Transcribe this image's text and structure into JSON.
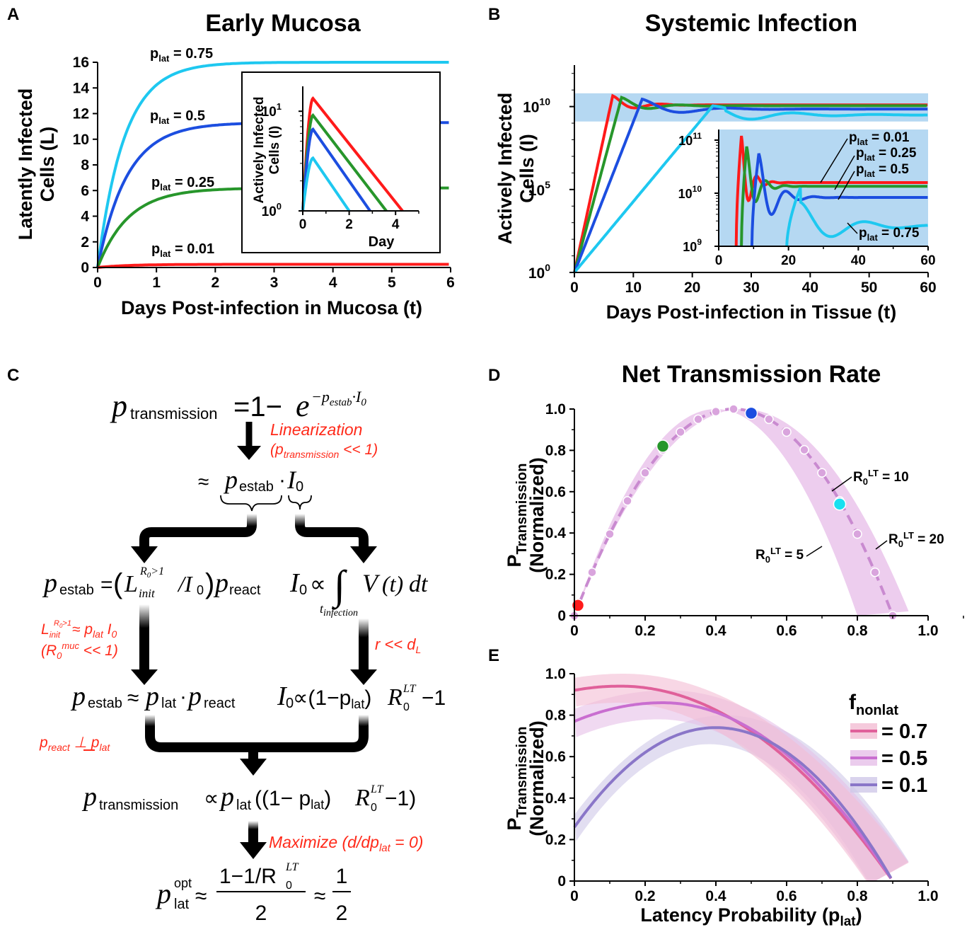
{
  "panels": {
    "A": {
      "letter": "A",
      "chart_data": {
        "type": "line",
        "title": "Early Mucosa",
        "xlabel": "Days Post-infection in Mucosa (t)",
        "ylabel_line1": "Latently Infected",
        "ylabel_line2": "Cells (L)",
        "xlim": [
          0,
          6
        ],
        "ylim": [
          0,
          16
        ],
        "xticks": [
          "0",
          "1",
          "2",
          "3",
          "4",
          "5",
          "6"
        ],
        "yticks": [
          "0",
          "2",
          "4",
          "6",
          "8",
          "10",
          "12",
          "14",
          "16"
        ],
        "series": [
          {
            "label_sub": "lat",
            "label_value": "0.75",
            "color": "#1ec8f0",
            "plateau": 16.0,
            "rate": 2.2
          },
          {
            "label_sub": "lat",
            "label_value": "0.5",
            "color": "#1c4ee0",
            "plateau": 11.3,
            "rate": 2.0
          },
          {
            "label_sub": "lat",
            "label_value": "0.25",
            "color": "#27962b",
            "plateau": 6.2,
            "rate": 1.9
          },
          {
            "label_sub": "lat",
            "label_value": " 0.01",
            "color": "#ff1a1a",
            "plateau": 0.25,
            "rate": 1.9
          }
        ],
        "inset": {
          "ylabel_line1": "Actively Infected",
          "ylabel_line2": "Cells (I)",
          "xlabel": "Day",
          "xlim": [
            0,
            5
          ],
          "ylim_log10": [
            0,
            1.25
          ],
          "xticks": [
            "0",
            "2",
            "4"
          ],
          "yticks": [
            "10",
            "10"
          ],
          "ytick_exps": [
            "0",
            "1"
          ],
          "series": [
            {
              "color": "#ff1a1a",
              "peak_x": 0.45,
              "peak_log": 1.13,
              "end_x": 4.3
            },
            {
              "color": "#27962b",
              "peak_x": 0.45,
              "peak_log": 0.96,
              "end_x": 3.6
            },
            {
              "color": "#1c4ee0",
              "peak_x": 0.45,
              "peak_log": 0.82,
              "end_x": 2.9
            },
            {
              "color": "#1ec8f0",
              "peak_x": 0.45,
              "peak_log": 0.53,
              "end_x": 2.0
            }
          ]
        }
      }
    },
    "B": {
      "letter": "B",
      "chart_data": {
        "type": "line",
        "title": "Systemic Infection",
        "xlabel": "Days Post-infection in Tissue (t)",
        "ylabel_line1": "Actively Infected",
        "ylabel_line2": "Cells (I)",
        "xlim": [
          0,
          60
        ],
        "ylim_log10": [
          0,
          12.5
        ],
        "xticks": [
          "0",
          "10",
          "20",
          "30",
          "40",
          "50",
          "60"
        ],
        "yticks": [
          "10",
          "10",
          "10"
        ],
        "ytick_exps": [
          "0",
          "5",
          "10"
        ],
        "band_log10": [
          9.1,
          10.8
        ],
        "series": [
          {
            "color": "#ff1a1a",
            "peak_day": 6.5,
            "peak_log": 10.65,
            "steady_log": 10.1
          },
          {
            "color": "#27962b",
            "peak_day": 8.0,
            "peak_log": 10.55,
            "steady_log": 10.05
          },
          {
            "color": "#1c4ee0",
            "peak_day": 11.5,
            "peak_log": 10.45,
            "steady_log": 9.85
          },
          {
            "color": "#1ec8f0",
            "peak_day": 23.5,
            "peak_log": 10.05,
            "steady_log": 9.45
          }
        ],
        "inset": {
          "xlim": [
            0,
            60
          ],
          "ylim_log10": [
            9.0,
            11.2
          ],
          "xticks": [
            "0",
            "20",
            "40",
            "60"
          ],
          "yticks": [
            "10",
            "10",
            "10"
          ],
          "ytick_exps": [
            "9",
            "10",
            "11"
          ],
          "labels": [
            {
              "sub": "lat",
              "value": "0.01"
            },
            {
              "sub": "lat",
              "value": "0.25"
            },
            {
              "sub": "lat",
              "value": "0.5"
            },
            {
              "sub": "lat",
              "value": "0.75"
            }
          ]
        }
      }
    },
    "C": {
      "letter": "C",
      "eq_top_p": "p",
      "eq_top_sub": "transmission",
      "eq_top_rhs": "=1−",
      "eq_top_e": "e",
      "eq_top_exp": "−p",
      "eq_top_exp_sub": "estab",
      "eq_top_exp_tail": "·I",
      "eq_top_exp_sub2": "0",
      "lin1": "Linearization",
      "lin2_open": "(p",
      "lin2_sub": "transmission",
      "lin2_close": " << 1)",
      "approx": "≈",
      "approx_p": "p",
      "approx_sub": "estab",
      "approx_dot": "·",
      "approx_I": "I",
      "approx_I_sub": "0",
      "left1_p": "p",
      "left1_sub": "estab",
      "left1_eq": "=",
      "left1_L": "L",
      "left1_Lsub": "init",
      "left1_Lsup": "R",
      "left1_Lsup_sub": "0",
      "left1_Lsup_tail": ">1",
      "left1_slash": "/I",
      "left1_slash_sub": "0",
      "left1_react": "p",
      "left1_react_sub": "react",
      "right1_I": "I",
      "right1_I_sub": "0",
      "right1_prop": "∝",
      "right1_int": "∫",
      "right1_V": "V",
      "right1_t": "(t)",
      "right1_dt": "dt",
      "right1_lower": "t",
      "right1_lower_sub": "infection",
      "cond_left1_L": "L",
      "cond_left1_Lsub": "init",
      "cond_left1_Lsup": "R",
      "cond_left1_Lsup_sub": "0",
      "cond_left1_Lsup_tail": ">1",
      "cond_left1_rhs": "≈ p",
      "cond_left1_rhs_sub": "lat",
      "cond_left1_tail": " I",
      "cond_left1_tail_sub": "0",
      "cond_left2_open": "(R",
      "cond_left2_sub": "0",
      "cond_left2_sup": "muc",
      "cond_left2_close": " << 1)",
      "cond_right": "r << d",
      "cond_right_sub": "L",
      "left2_p": "p",
      "left2_sub": "estab",
      "left2_approx": "≈",
      "left2_lat": "p",
      "left2_lat_sub": "lat",
      "left2_dot": "·",
      "left2_react": "p",
      "left2_react_sub": "react",
      "right2_I": "I",
      "right2_I_sub": "0",
      "right2_mid": "∝(1−p",
      "right2_mid_sub": "lat",
      "right2_close": ")",
      "right2_R": "R",
      "right2_R_sub": "0",
      "right2_R_sup": "LT",
      "right2_tail": " −1",
      "indep_p": "p",
      "indep_sub": "react",
      "indep_sym": " ⊥ ",
      "indep_p2": "p",
      "indep_sub2": "lat",
      "bottom_p": "p",
      "bottom_sub": "transmission",
      "bottom_prop": "∝",
      "bottom_lat": "p",
      "bottom_lat_sub": "lat",
      "bottom_mid": "((1− p",
      "bottom_mid_sub": "lat",
      "bottom_close": ")",
      "bottom_R": "R",
      "bottom_R_sub": "0",
      "bottom_R_sup": "LT",
      "bottom_tail": "−1)",
      "max_text": "Maximize (d/dp",
      "max_sub": "lat",
      "max_close": " = 0)",
      "opt_p": "p",
      "opt_sup": "opt",
      "opt_sub": "lat",
      "opt_approx": "≈",
      "opt_num": "1−1/R",
      "opt_num_sub": "0",
      "opt_num_sup": "LT",
      "opt_den": "2",
      "opt_approx2": "≈",
      "opt_half_num": "1",
      "opt_half_den": "2"
    },
    "D": {
      "letter": "D",
      "chart_data": {
        "type": "line",
        "title": "Net Transmission Rate",
        "ylabel_line1": "P",
        "ylabel_sub": "Transmission",
        "ylabel_line2": "(Normalized)",
        "xlim": [
          0,
          1
        ],
        "ylim": [
          0,
          1
        ],
        "xticks": [
          "0",
          "0.2",
          "0.4",
          "0.6",
          "0.8",
          "1.0"
        ],
        "yticks": [
          "0",
          "0.2",
          "0.4",
          "0.6",
          "0.8",
          "1.0"
        ],
        "dots_x": [
          0,
          0.05,
          0.1,
          0.15,
          0.2,
          0.25,
          0.3,
          0.35,
          0.4,
          0.45,
          0.5,
          0.55,
          0.6,
          0.65,
          0.7,
          0.75,
          0.8,
          0.85,
          0.9
        ],
        "highlight": [
          {
            "x": 0.01,
            "y": 0.05,
            "color": "#ff1a1a"
          },
          {
            "x": 0.25,
            "y": 0.82,
            "color": "#27962b"
          },
          {
            "x": 0.5,
            "y": 0.98,
            "color": "#1c4ee0"
          },
          {
            "x": 0.75,
            "y": 0.54,
            "color": "#18e0f0"
          }
        ],
        "labels": [
          {
            "R": "R",
            "sub": "0",
            "sup": "LT",
            "value": " = 10"
          },
          {
            "R": "R",
            "sub": "0",
            "sup": "LT",
            "value": " = 5"
          },
          {
            "R": "R",
            "sub": "0",
            "sup": "LT",
            "value": " = 20"
          }
        ]
      }
    },
    "E": {
      "letter": "E",
      "chart_data": {
        "type": "line",
        "xlabel": "Latency Probability (p",
        "xlabel_sub": "lat",
        "xlabel_close": ")",
        "ylabel_line1": "P",
        "ylabel_sub": "Transmission",
        "ylabel_line2": "(Normalized)",
        "xlim": [
          0,
          1
        ],
        "ylim": [
          0,
          1
        ],
        "xticks": [
          "0",
          "0.2",
          "0.4",
          "0.6",
          "0.8",
          "1.0"
        ],
        "yticks": [
          "0",
          "0.2",
          "0.4",
          "0.6",
          "0.8",
          "1.0"
        ],
        "legend_title": "f",
        "legend_title_sub": "nonlat",
        "series": [
          {
            "name": "= 0.7",
            "color": "#e0609a",
            "band": "#f3bdd3",
            "y0": 0.92,
            "peak_x": 0.13,
            "peak_y": 0.94,
            "end_x": 0.9
          },
          {
            "name": "= 0.5",
            "color": "#c96ed0",
            "band": "#e6bfe8",
            "y0": 0.77,
            "peak_x": 0.25,
            "peak_y": 0.86,
            "end_x": 0.9
          },
          {
            "name": "= 0.1",
            "color": "#8a76c8",
            "band": "#cfc8e8",
            "y0": 0.26,
            "peak_x": 0.4,
            "peak_y": 0.74,
            "end_x": 0.9
          }
        ]
      }
    }
  }
}
